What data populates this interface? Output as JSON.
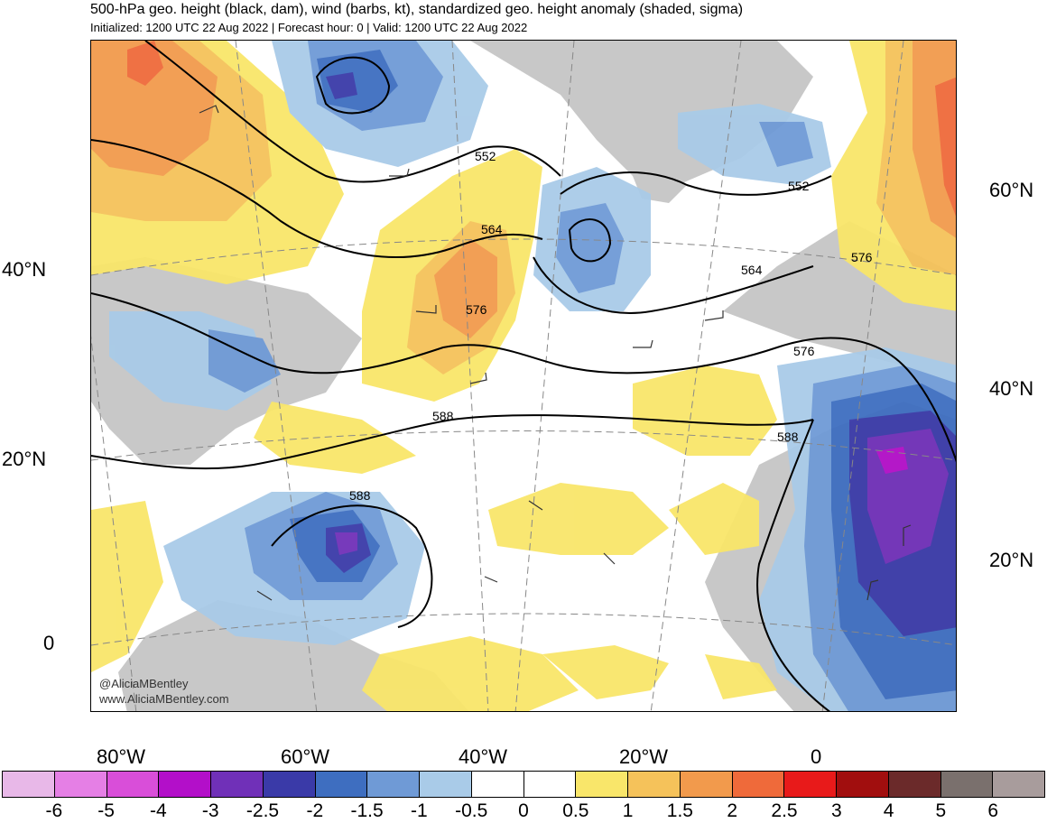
{
  "title": "500-hPa geo. height (black, dam), wind (barbs, kt), standardized geo. height anomaly (shaded, sigma)",
  "subtitle": "Initialized: 1200 UTC 22 Aug 2022 | Forecast hour: 0 | Valid: 1200 UTC 22 Aug 2022",
  "lat_labels_left": [
    "40°N",
    "20°N",
    "0"
  ],
  "lat_labels_right": [
    "60°N",
    "40°N",
    "20°N"
  ],
  "lon_labels": [
    "80°W",
    "60°W",
    "40°W",
    "20°W",
    "0"
  ],
  "contour_labels": [
    "552",
    "564",
    "576",
    "588",
    "552",
    "564",
    "576",
    "588",
    "576",
    "588"
  ],
  "credits": [
    "@AliciaMBentley",
    "www.AliciaMBentley.com"
  ],
  "colorbar": {
    "ticks": [
      "-6",
      "-5",
      "-4",
      "-3",
      "-2.5",
      "-2",
      "-1.5",
      "-1",
      "-0.5",
      "0",
      "0.5",
      "1",
      "1.5",
      "2",
      "2.5",
      "3",
      "4",
      "5",
      "6"
    ],
    "colors": [
      "#e8b8e8",
      "#e57fe5",
      "#d94ed9",
      "#b30fc9",
      "#7030b8",
      "#3a3aa8",
      "#3e6ec0",
      "#6f9ad6",
      "#a9cbe8",
      "#ffffff",
      "#ffffff",
      "#f9e66a",
      "#f5c25a",
      "#f29a4c",
      "#ef6a3a",
      "#e81a1a",
      "#a10e0e",
      "#6b2a2a",
      "#7a706d",
      "#a89c9c"
    ]
  },
  "anomaly_colors": {
    "land": "#c8c8c8",
    "pos05": "#f9e66a",
    "pos1": "#f5c25a",
    "pos15": "#f29a4c",
    "pos2": "#ef6a3a",
    "neg05": "#a9cbe8",
    "neg1": "#6f9ad6",
    "neg15": "#3e6ec0",
    "neg2": "#3a3aa8",
    "neg25": "#7030b8",
    "neg3": "#b30fc9"
  }
}
